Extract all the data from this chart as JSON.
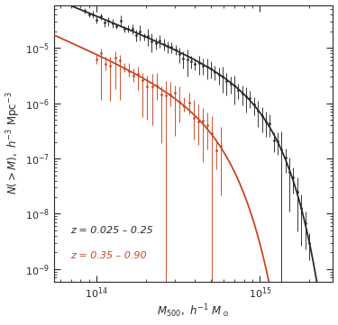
{
  "title": "",
  "xlabel": "$M_{500},\\ h^{-1}\\ M_\\odot$",
  "ylabel": "$N(>M),\\ h^{-3}\\ \\mathrm{Mpc}^{-3}$",
  "xlim": [
    55000000000000.0,
    2800000000000000.0
  ],
  "ylim": [
    6e-10,
    6e-05
  ],
  "label_low_z": "z = 0.025 – 0.25",
  "label_high_z": "z = 0.35 – 0.90",
  "color_low_z": "#2a2a2a",
  "color_high_z": "#cc4422",
  "background_color": "#ffffff",
  "axes_color": "#2a2a2a"
}
